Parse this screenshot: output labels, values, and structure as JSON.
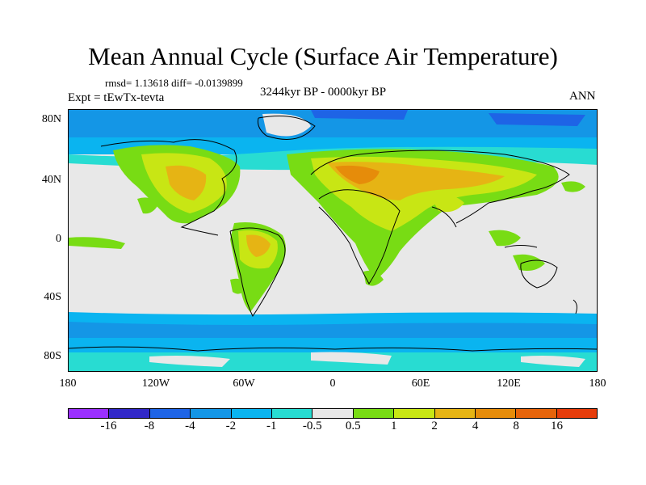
{
  "title": "Mean Annual Cycle (Surface Air Temperature)",
  "stats": "rmsd= 1.13618 diff= -0.0139899",
  "experiment": "Expt = tEwTx-tevta",
  "period": "3244kyr BP - 0000kyr BP",
  "season": "ANN",
  "map": {
    "lat_labels": [
      "80N",
      "40N",
      "0",
      "40S",
      "80S"
    ],
    "lat_values": [
      80,
      40,
      0,
      -40,
      -80
    ],
    "lon_labels": [
      "180",
      "120W",
      "60W",
      "0",
      "60E",
      "120E",
      "180"
    ],
    "lon_values": [
      -180,
      -120,
      -60,
      0,
      60,
      120,
      180
    ],
    "lat_range": [
      -90,
      90
    ],
    "lon_range": [
      -180,
      180
    ]
  },
  "colorbar": {
    "colors": [
      "#9b30ff",
      "#3228c8",
      "#1e64e6",
      "#1496e6",
      "#0ab4f0",
      "#28dcd2",
      "#e8e8e8",
      "#78dc14",
      "#c8e614",
      "#e6b414",
      "#e68c0a",
      "#e6640a",
      "#e63c0a"
    ],
    "labels": [
      "-16",
      "-8",
      "-4",
      "-2",
      "-1",
      "-0.5",
      "0.5",
      "1",
      "2",
      "4",
      "8",
      "16"
    ]
  },
  "colors": {
    "neutral": "#e8e8e8",
    "warm_light": "#78dc14",
    "warm_mid": "#c8e614",
    "warm_high": "#e6b414",
    "warm_very_high": "#e68c0a",
    "cool_light": "#28dcd2",
    "cool_mid": "#0ab4f0",
    "cool_strong": "#1496e6",
    "cool_very_strong": "#1e64e6"
  }
}
